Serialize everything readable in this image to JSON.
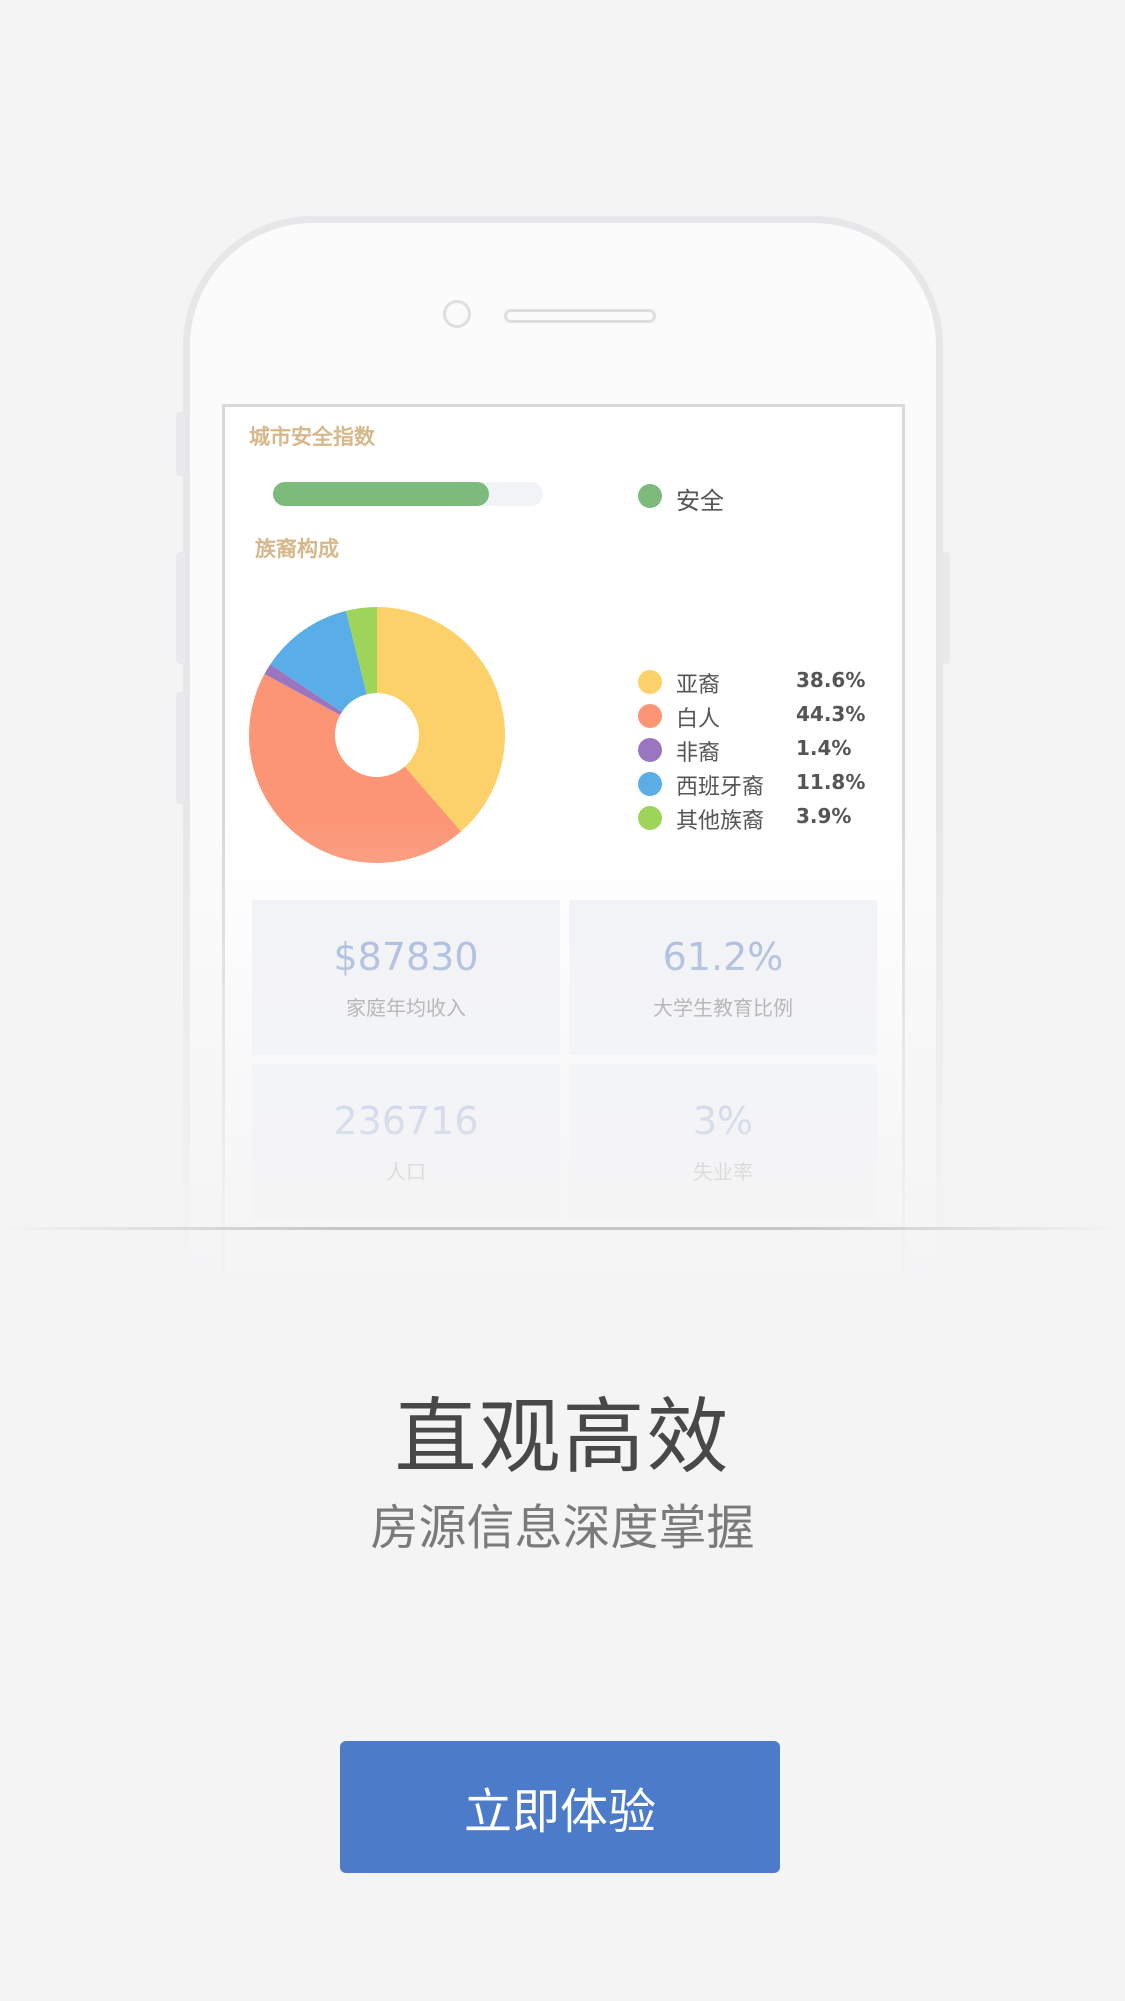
{
  "screen": {
    "safety_title": "城市安全指数",
    "safety_level": 0.8,
    "safety_status": "安全",
    "safety_color": "#7cbb7b",
    "ethnic_title": "族裔构成",
    "ethnic": [
      {
        "name": "亚裔",
        "value": "38.6%",
        "pct": 38.6,
        "color": "#fdd16a"
      },
      {
        "name": "白人",
        "value": "44.3%",
        "pct": 44.3,
        "color": "#fb9575"
      },
      {
        "name": "非裔",
        "value": "1.4%",
        "pct": 1.4,
        "color": "#9a76c1"
      },
      {
        "name": "西班牙裔",
        "value": "11.8%",
        "pct": 11.8,
        "color": "#5aaee8"
      },
      {
        "name": "其他族裔",
        "value": "3.9%",
        "pct": 3.9,
        "color": "#9ed45a"
      }
    ],
    "stats": [
      {
        "value": "$87830",
        "label": "家庭年均收入"
      },
      {
        "value": "61.2%",
        "label": "大学生教育比例"
      },
      {
        "value": "236716",
        "label": "人口"
      },
      {
        "value": "3%",
        "label": "失业率"
      }
    ]
  },
  "headline": "直观高效",
  "subline": "房源信息深度掌握",
  "cta_label": "立即体验",
  "accent_color": "#4c7bc9"
}
